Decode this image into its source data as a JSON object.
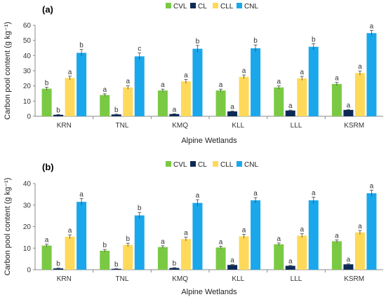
{
  "chart_data": [
    {
      "type": "bar",
      "panel_label": "(a)",
      "categories": [
        "KRN",
        "TNL",
        "KMQ",
        "KLL",
        "LLL",
        "KSRM"
      ],
      "xlabel": "Alpine Wetlands",
      "ylabel": "Carbon pool content (g kg⁻¹)",
      "ylim": [
        0,
        60
      ],
      "yticks": [
        0,
        10,
        20,
        30,
        40,
        50,
        60
      ],
      "legend_position": "top",
      "series": [
        {
          "name": "CVL",
          "color": "#7ac943",
          "values": [
            18.2,
            14.0,
            17.0,
            17.0,
            19.0,
            21.3
          ],
          "errors": [
            0.9,
            0.8,
            0.9,
            0.9,
            1.0,
            1.0
          ],
          "letters": [
            "b",
            "a",
            "a",
            "a",
            "a",
            "a"
          ]
        },
        {
          "name": "CL",
          "color": "#0d2a56",
          "values": [
            1.0,
            1.2,
            1.5,
            3.2,
            3.8,
            4.2
          ],
          "errors": [
            0.2,
            0.2,
            0.2,
            0.3,
            0.3,
            0.3
          ],
          "letters": [
            "b",
            "b",
            "a",
            "a",
            "a",
            "a"
          ]
        },
        {
          "name": "CLL",
          "color": "#ffd95a",
          "values": [
            25.2,
            19.0,
            23.0,
            26.0,
            25.0,
            28.5
          ],
          "errors": [
            1.2,
            1.2,
            1.3,
            1.2,
            1.3,
            1.4
          ],
          "letters": [
            "a",
            "a",
            "a",
            "a",
            "a",
            "a"
          ]
        },
        {
          "name": "CNL",
          "color": "#1aa7ec",
          "values": [
            41.8,
            39.5,
            44.5,
            44.8,
            45.8,
            54.8
          ],
          "errors": [
            2.2,
            2.2,
            2.2,
            2.2,
            2.0,
            1.8
          ],
          "letters": [
            "b",
            "c",
            "b",
            "b",
            "b",
            "a"
          ]
        }
      ]
    },
    {
      "type": "bar",
      "panel_label": "(b)",
      "categories": [
        "KRN",
        "TNL",
        "KMQ",
        "KLL",
        "LLL",
        "KSRM"
      ],
      "xlabel": "Alpine Wetlands",
      "ylabel": "Carbon pool content (g kg⁻¹)",
      "ylim": [
        0,
        40
      ],
      "yticks": [
        0,
        10,
        20,
        30,
        40
      ],
      "legend_position": "top",
      "series": [
        {
          "name": "CVL",
          "color": "#7ac943",
          "values": [
            11.2,
            8.8,
            10.5,
            10.3,
            11.8,
            13.2
          ],
          "errors": [
            0.6,
            0.6,
            0.6,
            0.6,
            0.6,
            0.6
          ],
          "letters": [
            "a",
            "b",
            "a",
            "a",
            "a",
            "a"
          ]
        },
        {
          "name": "CL",
          "color": "#0d2a56",
          "values": [
            0.6,
            0.4,
            0.8,
            2.2,
            1.8,
            2.5
          ],
          "errors": [
            0.15,
            0.1,
            0.15,
            0.2,
            0.2,
            0.2
          ],
          "letters": [
            "b",
            "b",
            "b",
            "a",
            "a",
            "a"
          ]
        },
        {
          "name": "CLL",
          "color": "#ffd95a",
          "values": [
            15.3,
            11.5,
            14.2,
            15.5,
            15.8,
            17.3
          ],
          "errors": [
            0.9,
            0.8,
            0.9,
            0.9,
            0.9,
            0.9
          ],
          "letters": [
            "a",
            "b",
            "a",
            "a",
            "a",
            "a"
          ]
        },
        {
          "name": "CNL",
          "color": "#1aa7ec",
          "values": [
            31.5,
            25.2,
            31.0,
            32.2,
            32.2,
            35.5
          ],
          "errors": [
            1.5,
            1.4,
            1.5,
            1.3,
            1.5,
            1.4
          ],
          "letters": [
            "a",
            "b",
            "a",
            "a",
            "a",
            "a"
          ]
        }
      ]
    }
  ]
}
